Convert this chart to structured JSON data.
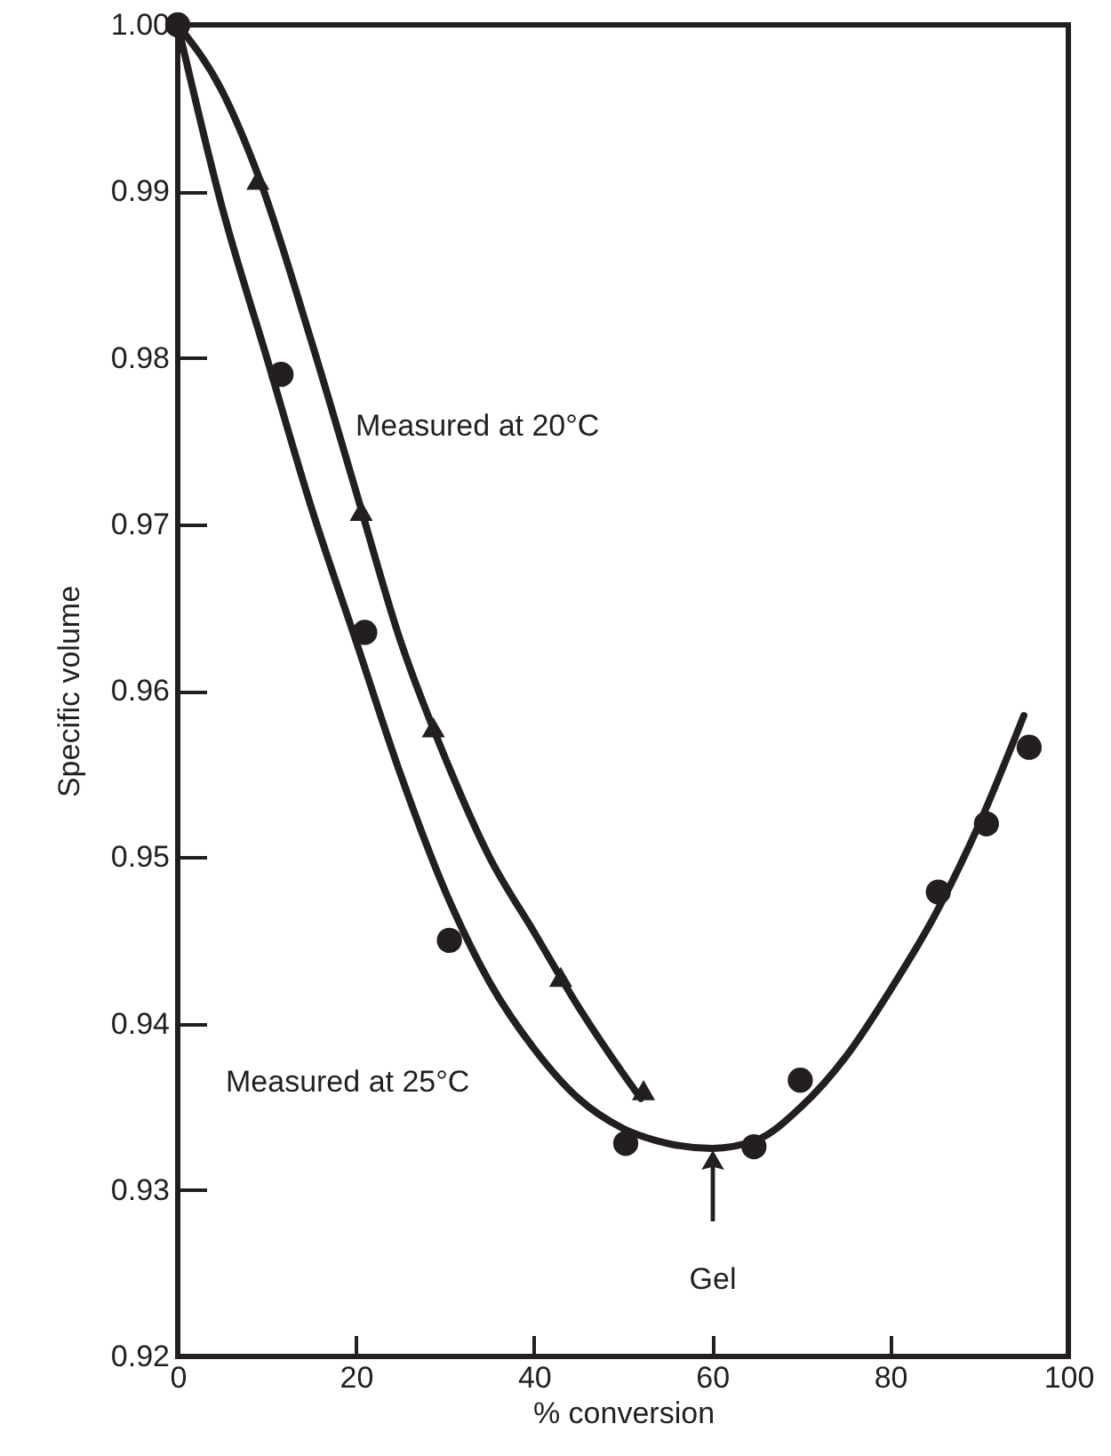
{
  "chart_data": {
    "type": "scatter",
    "xlabel": "% conversion",
    "ylabel": "Specific volume",
    "xlim": [
      0,
      100
    ],
    "xticks": [
      0,
      20,
      40,
      60,
      80,
      100
    ],
    "ylim": [
      0.92,
      1.0
    ],
    "yticks": [
      {
        "value": 0.92,
        "label": "0.92"
      },
      {
        "value": 0.93,
        "label": "0.93"
      },
      {
        "value": 0.94,
        "label": "0.94"
      },
      {
        "value": 0.95,
        "label": "0.95"
      },
      {
        "value": 0.96,
        "label": "0.96"
      },
      {
        "value": 0.97,
        "label": "0.97"
      },
      {
        "value": 0.98,
        "label": "0.98"
      },
      {
        "value": 0.99,
        "label": "0.99"
      },
      {
        "value": 1.0,
        "label": "1.00"
      }
    ],
    "series": [
      {
        "type": "line",
        "color": "#231f20",
        "marker": "none",
        "x": [
          0,
          5,
          10,
          15,
          20,
          25,
          30,
          35,
          40,
          45,
          50,
          55,
          60,
          65,
          70,
          75,
          80,
          85,
          90,
          95
        ],
        "values": [
          1.0,
          0.989,
          0.98,
          0.971,
          0.963,
          0.955,
          0.948,
          0.9425,
          0.9385,
          0.9355,
          0.9337,
          0.9328,
          0.9325,
          0.933,
          0.935,
          0.938,
          0.942,
          0.9465,
          0.952,
          0.9585
        ]
      },
      {
        "type": "line",
        "color": "#231f20",
        "marker": "none",
        "x": [
          0,
          5,
          9,
          15,
          20,
          25,
          30,
          35,
          40,
          45,
          50,
          52
        ],
        "values": [
          1.0,
          0.996,
          0.991,
          0.981,
          0.972,
          0.963,
          0.956,
          0.95,
          0.9455,
          0.941,
          0.937,
          0.9355
        ]
      },
      {
        "color": "#231f20",
        "marker": "circle",
        "x": [
          0,
          11.6,
          21,
          30.5,
          50.3,
          64.7,
          69.9,
          85.4,
          90.8,
          95.6
        ],
        "values": [
          1.0,
          0.979,
          0.9635,
          0.945,
          0.9328,
          0.9326,
          0.9366,
          0.9479,
          0.952,
          0.9566
        ]
      },
      {
        "color": "#231f20",
        "marker": "triangle",
        "x": [
          9,
          20.6,
          28.7,
          43,
          52.3
        ],
        "values": [
          0.9907,
          0.9708,
          0.9578,
          0.9428,
          0.936
        ]
      }
    ],
    "annotations": [
      "Measured at 20°C",
      "Measured at 25°C",
      "Gel"
    ]
  }
}
